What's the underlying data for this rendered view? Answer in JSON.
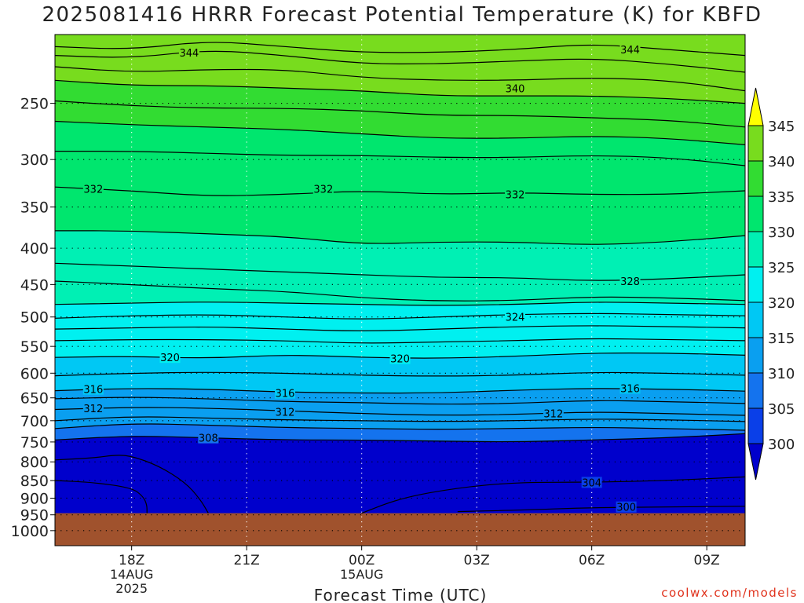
{
  "page": {
    "title": "2025081416 HRRR Forecast Potential Temperature (K) for KBFD",
    "watermark": "coolwx.com/models"
  },
  "chart_data": {
    "type": "contour",
    "title": "2025081416 HRRR Forecast Potential Temperature (K) for KBFD",
    "xlabel": "Forecast Time (UTC)",
    "ylabel": "",
    "x_range_hours": [
      16,
      34
    ],
    "x_ticks": [
      {
        "hour": 18,
        "label": "18Z",
        "sub": [
          "14AUG",
          "2025"
        ]
      },
      {
        "hour": 21,
        "label": "21Z",
        "sub": []
      },
      {
        "hour": 24,
        "label": "00Z",
        "sub": [
          "15AUG"
        ]
      },
      {
        "hour": 27,
        "label": "03Z",
        "sub": []
      },
      {
        "hour": 30,
        "label": "06Z",
        "sub": []
      },
      {
        "hour": 33,
        "label": "09Z",
        "sub": []
      }
    ],
    "y_scale": "log-pressure",
    "y_range_hpa": [
      1050,
      200
    ],
    "y_ticks": [
      1000,
      950,
      900,
      850,
      800,
      750,
      700,
      650,
      600,
      550,
      500,
      450,
      400,
      350,
      300,
      250
    ],
    "ground_pressure_hpa": 945,
    "ground_color": "#a0522d",
    "grid": "dotted",
    "colorbar": {
      "levels": [
        300,
        305,
        310,
        315,
        320,
        325,
        330,
        335,
        340,
        345
      ],
      "colors": [
        "#0000cc",
        "#0a3fe8",
        "#1473ee",
        "#0a9ff0",
        "#00c8f4",
        "#00f0f0",
        "#00f0b4",
        "#00e66e",
        "#32dc32",
        "#78dc1e",
        "#c8f01e",
        "#ffff00"
      ],
      "placement": "right"
    },
    "contours": [
      {
        "theta": 300,
        "labeled": true,
        "hours": [
          26.5,
          28,
          30,
          32,
          34
        ],
        "pressures": [
          940,
          936,
          928,
          926,
          924
        ]
      },
      {
        "theta": 304,
        "labeled": true,
        "hours": [
          24,
          25,
          26.5,
          28,
          30,
          32,
          34
        ],
        "pressures": [
          945,
          900,
          870,
          855,
          855,
          850,
          840
        ]
      },
      {
        "theta": 306,
        "labeled": false,
        "hours": [
          16,
          17,
          17.6,
          18,
          18.7,
          19.4,
          19.8,
          20
        ],
        "pressures": [
          795,
          790,
          782,
          785,
          810,
          855,
          905,
          945
        ]
      },
      {
        "theta": 307,
        "labeled": false,
        "hours": [
          16,
          17,
          18,
          18.3,
          18.4,
          18.4
        ],
        "pressures": [
          850,
          855,
          870,
          895,
          920,
          945
        ]
      },
      {
        "theta": 308,
        "labeled": true,
        "hours": [
          16,
          18,
          20,
          22,
          24,
          26,
          28,
          30,
          32,
          34
        ],
        "pressures": [
          745,
          735,
          740,
          745,
          745,
          748,
          750,
          745,
          740,
          730
        ]
      },
      {
        "theta": 310,
        "labeled": false,
        "hours": [
          16,
          18,
          20,
          22,
          24,
          26,
          28,
          30,
          32,
          34
        ],
        "pressures": [
          718,
          706,
          710,
          716,
          718,
          720,
          718,
          715,
          718,
          722
        ]
      },
      {
        "theta": 311,
        "labeled": false,
        "hours": [
          16,
          18,
          20,
          22,
          24,
          26,
          28,
          30,
          32,
          34
        ],
        "pressures": [
          700,
          690,
          694,
          698,
          700,
          702,
          700,
          696,
          698,
          702
        ]
      },
      {
        "theta": 312,
        "labeled": true,
        "hours": [
          16,
          18,
          20,
          22,
          24,
          26,
          28,
          30,
          32,
          34
        ],
        "pressures": [
          675,
          670,
          672,
          678,
          684,
          688,
          686,
          680,
          684,
          688
        ]
      },
      {
        "theta": 314,
        "labeled": false,
        "hours": [
          16,
          18,
          20,
          22,
          24,
          26,
          28,
          30,
          32,
          34
        ],
        "pressures": [
          652,
          648,
          652,
          658,
          660,
          664,
          662,
          655,
          658,
          662
        ]
      },
      {
        "theta": 316,
        "labeled": true,
        "hours": [
          16,
          18,
          20,
          22,
          24,
          26,
          28,
          30,
          32,
          34
        ],
        "pressures": [
          635,
          630,
          632,
          638,
          640,
          640,
          634,
          630,
          632,
          636
        ]
      },
      {
        "theta": 318,
        "labeled": false,
        "hours": [
          16,
          18,
          20,
          22,
          24,
          26,
          28,
          30,
          32,
          34
        ],
        "pressures": [
          605,
          600,
          598,
          600,
          604,
          606,
          604,
          598,
          600,
          604
        ]
      },
      {
        "theta": 320,
        "labeled": true,
        "hours": [
          16,
          18,
          20,
          22,
          24,
          26,
          28,
          30,
          32,
          34
        ],
        "pressures": [
          570,
          568,
          572,
          565,
          570,
          572,
          568,
          562,
          562,
          566
        ]
      },
      {
        "theta": 322,
        "labeled": false,
        "hours": [
          16,
          18,
          20,
          22,
          24,
          26,
          28,
          30,
          32,
          34
        ],
        "pressures": [
          540,
          538,
          538,
          540,
          545,
          542,
          540,
          536,
          538,
          540
        ]
      },
      {
        "theta": 323,
        "labeled": false,
        "hours": [
          16,
          18,
          20,
          22,
          24,
          26,
          28,
          30,
          32,
          34
        ],
        "pressures": [
          520,
          518,
          516,
          520,
          524,
          520,
          516,
          514,
          516,
          518
        ]
      },
      {
        "theta": 324,
        "labeled": true,
        "hours": [
          16,
          18,
          20,
          22,
          24,
          26,
          28,
          30,
          32,
          34
        ],
        "pressures": [
          502,
          498,
          496,
          500,
          504,
          500,
          496,
          494,
          496,
          498
        ]
      },
      {
        "theta": 325,
        "labeled": false,
        "hours": [
          16,
          18,
          20,
          22,
          24,
          26,
          28,
          30,
          32,
          34
        ],
        "pressures": [
          480,
          478,
          476,
          478,
          480,
          482,
          480,
          476,
          478,
          480
        ]
      },
      {
        "theta": 326,
        "labeled": false,
        "hours": [
          16,
          18,
          20,
          22,
          24,
          26,
          28,
          30,
          32,
          34
        ],
        "pressures": [
          445,
          450,
          456,
          460,
          470,
          475,
          474,
          468,
          470,
          474
        ]
      },
      {
        "theta": 328,
        "labeled": true,
        "hours": [
          16,
          18,
          20,
          22,
          24,
          26,
          28,
          30,
          32,
          34
        ],
        "pressures": [
          420,
          424,
          428,
          432,
          436,
          440,
          440,
          445,
          442,
          436
        ]
      },
      {
        "theta": 330,
        "labeled": false,
        "hours": [
          16,
          18,
          20,
          22,
          24,
          26,
          28,
          30,
          32,
          34
        ],
        "pressures": [
          378,
          378,
          382,
          385,
          395,
          392,
          392,
          396,
          392,
          384
        ]
      },
      {
        "theta": 332,
        "labeled": true,
        "hours": [
          16,
          18,
          20,
          22,
          24,
          26,
          28,
          30,
          32,
          34
        ],
        "pressures": [
          328,
          332,
          338,
          336,
          332,
          336,
          334,
          336,
          336,
          332
        ]
      },
      {
        "theta": 334,
        "labeled": false,
        "hours": [
          16,
          18,
          20,
          22,
          24,
          26,
          28,
          30,
          32,
          34
        ],
        "pressures": [
          292,
          292,
          294,
          296,
          296,
          298,
          298,
          296,
          298,
          306
        ]
      },
      {
        "theta": 336,
        "labeled": false,
        "hours": [
          16,
          18,
          20,
          22,
          24,
          26,
          28,
          30,
          32,
          34
        ],
        "pressures": [
          265,
          268,
          270,
          272,
          276,
          280,
          280,
          278,
          280,
          286
        ]
      },
      {
        "theta": 338,
        "labeled": false,
        "hours": [
          16,
          18,
          20,
          22,
          24,
          26,
          28,
          30,
          32,
          34
        ],
        "pressures": [
          248,
          252,
          254,
          254,
          256,
          260,
          260,
          262,
          264,
          270
        ]
      },
      {
        "theta": 340,
        "labeled": true,
        "hours": [
          16,
          18,
          20,
          22,
          24,
          26,
          28,
          30,
          32,
          34
        ],
        "pressures": [
          232,
          236,
          236,
          238,
          240,
          244,
          244,
          244,
          246,
          250
        ]
      },
      {
        "theta": 342,
        "labeled": false,
        "hours": [
          16,
          18,
          20,
          22,
          24,
          26,
          28,
          30,
          32,
          34
        ],
        "pressures": [
          222,
          226,
          224,
          224,
          230,
          232,
          232,
          230,
          232,
          240
        ]
      },
      {
        "theta": 343,
        "labeled": false,
        "hours": [
          16,
          18,
          20,
          22,
          24,
          26,
          28,
          30,
          32,
          34
        ],
        "pressures": [
          214,
          216,
          210,
          214,
          220,
          220,
          218,
          216,
          220,
          226
        ]
      },
      {
        "theta": 344,
        "labeled": true,
        "hours": [
          16,
          18,
          20,
          22,
          24,
          26,
          28,
          30,
          32,
          34
        ],
        "pressures": [
          208,
          210,
          204,
          208,
          212,
          212,
          210,
          206,
          210,
          214
        ]
      }
    ],
    "contour_labels": [
      {
        "text": "344",
        "hour": 19.5,
        "pressure": 212
      },
      {
        "text": "344",
        "hour": 31.0,
        "pressure": 210
      },
      {
        "text": "340",
        "hour": 28.0,
        "pressure": 238
      },
      {
        "text": "332",
        "hour": 17.0,
        "pressure": 330
      },
      {
        "text": "332",
        "hour": 23.0,
        "pressure": 330
      },
      {
        "text": "332",
        "hour": 28.0,
        "pressure": 336
      },
      {
        "text": "328",
        "hour": 31.0,
        "pressure": 445
      },
      {
        "text": "324",
        "hour": 28.0,
        "pressure": 500
      },
      {
        "text": "320",
        "hour": 19.0,
        "pressure": 570
      },
      {
        "text": "320",
        "hour": 25.0,
        "pressure": 572
      },
      {
        "text": "316",
        "hour": 17.0,
        "pressure": 632
      },
      {
        "text": "316",
        "hour": 22.0,
        "pressure": 640
      },
      {
        "text": "316",
        "hour": 31.0,
        "pressure": 630
      },
      {
        "text": "312",
        "hour": 17.0,
        "pressure": 672
      },
      {
        "text": "312",
        "hour": 22.0,
        "pressure": 680
      },
      {
        "text": "312",
        "hour": 29.0,
        "pressure": 684
      },
      {
        "text": "308",
        "hour": 20.0,
        "pressure": 740
      },
      {
        "text": "304",
        "hour": 30.0,
        "pressure": 855
      },
      {
        "text": "300",
        "hour": 30.9,
        "pressure": 926
      }
    ]
  }
}
